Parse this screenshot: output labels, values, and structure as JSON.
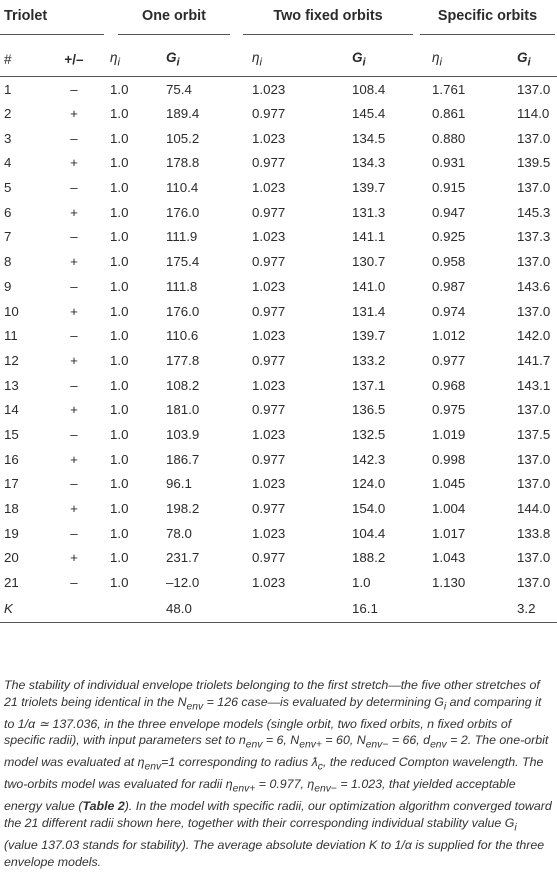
{
  "header": {
    "triolet": "Triolet",
    "one_orbit": "One orbit",
    "two_fixed": "Two fixed orbits",
    "specific": "Specific orbits",
    "num": "#",
    "pm": "+/–",
    "eta": "ηi",
    "g": "Gi"
  },
  "rows": [
    {
      "i": "1",
      "s": "–",
      "e1": "1.0",
      "g1": "75.4",
      "e2": "1.023",
      "g2": "108.4",
      "e3": "1.761",
      "g3": "137.0"
    },
    {
      "i": "2",
      "s": "+",
      "e1": "1.0",
      "g1": "189.4",
      "e2": "0.977",
      "g2": "145.4",
      "e3": "0.861",
      "g3": "114.0"
    },
    {
      "i": "3",
      "s": "–",
      "e1": "1.0",
      "g1": "105.2",
      "e2": "1.023",
      "g2": "134.5",
      "e3": "0.880",
      "g3": "137.0"
    },
    {
      "i": "4",
      "s": "+",
      "e1": "1.0",
      "g1": "178.8",
      "e2": "0.977",
      "g2": "134.3",
      "e3": "0.931",
      "g3": "139.5"
    },
    {
      "i": "5",
      "s": "–",
      "e1": "1.0",
      "g1": "110.4",
      "e2": "1.023",
      "g2": "139.7",
      "e3": "0.915",
      "g3": "137.0"
    },
    {
      "i": "6",
      "s": "+",
      "e1": "1.0",
      "g1": "176.0",
      "e2": "0.977",
      "g2": "131.3",
      "e3": "0.947",
      "g3": "145.3"
    },
    {
      "i": "7",
      "s": "–",
      "e1": "1.0",
      "g1": "111.9",
      "e2": "1.023",
      "g2": "141.1",
      "e3": "0.925",
      "g3": "137.3"
    },
    {
      "i": "8",
      "s": "+",
      "e1": "1.0",
      "g1": "175.4",
      "e2": "0.977",
      "g2": "130.7",
      "e3": "0.958",
      "g3": "137.0"
    },
    {
      "i": "9",
      "s": "–",
      "e1": "1.0",
      "g1": "111.8",
      "e2": "1.023",
      "g2": "141.0",
      "e3": "0.987",
      "g3": "143.6"
    },
    {
      "i": "10",
      "s": "+",
      "e1": "1.0",
      "g1": "176.0",
      "e2": "0.977",
      "g2": "131.4",
      "e3": "0.974",
      "g3": "137.0"
    },
    {
      "i": "11",
      "s": "–",
      "e1": "1.0",
      "g1": "110.6",
      "e2": "1.023",
      "g2": "139.7",
      "e3": "1.012",
      "g3": "142.0"
    },
    {
      "i": "12",
      "s": "+",
      "e1": "1.0",
      "g1": "177.8",
      "e2": "0.977",
      "g2": "133.2",
      "e3": "0.977",
      "g3": "141.7"
    },
    {
      "i": "13",
      "s": "–",
      "e1": "1.0",
      "g1": "108.2",
      "e2": "1.023",
      "g2": "137.1",
      "e3": "0.968",
      "g3": "143.1"
    },
    {
      "i": "14",
      "s": "+",
      "e1": "1.0",
      "g1": "181.0",
      "e2": "0.977",
      "g2": "136.5",
      "e3": "0.975",
      "g3": "137.0"
    },
    {
      "i": "15",
      "s": "–",
      "e1": "1.0",
      "g1": "103.9",
      "e2": "1.023",
      "g2": "132.5",
      "e3": "1.019",
      "g3": "137.5"
    },
    {
      "i": "16",
      "s": "+",
      "e1": "1.0",
      "g1": "186.7",
      "e2": "0.977",
      "g2": "142.3",
      "e3": "0.998",
      "g3": "137.0"
    },
    {
      "i": "17",
      "s": "–",
      "e1": "1.0",
      "g1": "96.1",
      "e2": "1.023",
      "g2": "124.0",
      "e3": "1.045",
      "g3": "137.0"
    },
    {
      "i": "18",
      "s": "+",
      "e1": "1.0",
      "g1": "198.2",
      "e2": "0.977",
      "g2": "154.0",
      "e3": "1.004",
      "g3": "144.0"
    },
    {
      "i": "19",
      "s": "–",
      "e1": "1.0",
      "g1": "78.0",
      "e2": "1.023",
      "g2": "104.4",
      "e3": "1.017",
      "g3": "133.8"
    },
    {
      "i": "20",
      "s": "+",
      "e1": "1.0",
      "g1": "231.7",
      "e2": "0.977",
      "g2": "188.2",
      "e3": "1.043",
      "g3": "137.0"
    },
    {
      "i": "21",
      "s": "–",
      "e1": "1.0",
      "g1": "–12.0",
      "e2": "1.023",
      "g2": "1.0",
      "e3": "1.130",
      "g3": "137.0"
    }
  ],
  "k_row": {
    "label": "K",
    "one": "48.0",
    "two": "16.1",
    "spec": "3.2"
  },
  "caption": {
    "part1": "The stability of individual envelope triolets belonging to the first stretch—the five other stretches of 21 triolets being identical in the N",
    "part2": " = 126 case—is evaluated by determining G",
    "part3": " and comparing it to 1/α ≃ 137.036, in the three envelope models (single orbit, two fixed orbits, n fixed orbits of specific radii), with input parameters set to n",
    "part4": " = 6, N",
    "part5": " = 60, N",
    "part6": " = 66, d",
    "part7": " = 2. The one-orbit model was evaluated at η",
    "part8": "=1 corresponding to radius ƛ",
    "part9": ", the reduced Compton wavelength. The two-orbits model was evaluated for radii η",
    "part10": " = 0.977, η",
    "part11": " = 1.023, that yielded acceptable energy value (",
    "table_ref": "Table 2",
    "part12": "). In the model with specific radii, our optimization algorithm converged toward the 21 different radii shown here, together with their corresponding individual stability value G",
    "part13": " (value 137.03 stands for stability). The average absolute deviation K to 1/α is supplied for the three envelope models."
  }
}
